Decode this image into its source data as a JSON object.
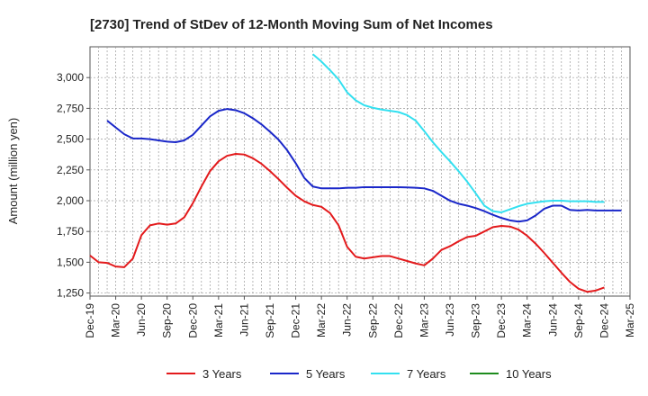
{
  "chart_data": {
    "type": "line",
    "title": "[2730]  Trend of StDev of 12-Month Moving Sum of Net Incomes",
    "ylabel": "Amount (million yen)",
    "xlabel": "",
    "ylim": [
      1225,
      3250
    ],
    "yticks": [
      1250,
      1500,
      1750,
      2000,
      2250,
      2500,
      2750,
      3000
    ],
    "ytick_labels": [
      "1,250",
      "1,500",
      "1,750",
      "2,000",
      "2,250",
      "2,500",
      "2,750",
      "3,000"
    ],
    "x_tick_labels": [
      "Dec-19",
      "Mar-20",
      "Jun-20",
      "Sep-20",
      "Dec-20",
      "Mar-21",
      "Jun-21",
      "Sep-21",
      "Dec-21",
      "Mar-22",
      "Jun-22",
      "Sep-22",
      "Dec-22",
      "Mar-23",
      "Jun-23",
      "Sep-23",
      "Dec-23",
      "Mar-24",
      "Jun-24",
      "Sep-24",
      "Dec-24",
      "Mar-25"
    ],
    "grid": true,
    "legend_position": "bottom",
    "series": [
      {
        "name": "3 Years",
        "color": "#e31a1c",
        "start_index": 0,
        "values": [
          1555,
          1500,
          1495,
          1465,
          1460,
          1530,
          1720,
          1800,
          1815,
          1805,
          1815,
          1865,
          1980,
          2115,
          2240,
          2320,
          2365,
          2380,
          2375,
          2345,
          2300,
          2240,
          2175,
          2105,
          2040,
          1995,
          1965,
          1950,
          1900,
          1800,
          1625,
          1545,
          1530,
          1540,
          1550,
          1550,
          1530,
          1510,
          1490,
          1475,
          1530,
          1600,
          1630,
          1670,
          1705,
          1715,
          1750,
          1785,
          1795,
          1790,
          1765,
          1715,
          1650,
          1575,
          1495,
          1415,
          1340,
          1285,
          1260,
          1270,
          1295
        ]
      },
      {
        "name": "5 Years",
        "color": "#1a27c9",
        "start_index": 2,
        "values": [
          2650,
          2595,
          2540,
          2505,
          2505,
          2500,
          2490,
          2480,
          2475,
          2490,
          2535,
          2610,
          2685,
          2730,
          2745,
          2735,
          2710,
          2670,
          2620,
          2560,
          2495,
          2410,
          2305,
          2185,
          2115,
          2100,
          2100,
          2100,
          2105,
          2105,
          2110,
          2110,
          2110,
          2110,
          2110,
          2108,
          2105,
          2100,
          2080,
          2040,
          2000,
          1975,
          1960,
          1940,
          1915,
          1885,
          1860,
          1840,
          1830,
          1840,
          1880,
          1935,
          1960,
          1960,
          1925,
          1920,
          1925,
          1920,
          1920,
          1920,
          1920
        ]
      },
      {
        "name": "7 Years",
        "color": "#33e0f0",
        "start_index": 26,
        "values": [
          3190,
          3130,
          3060,
          2985,
          2880,
          2815,
          2775,
          2755,
          2740,
          2730,
          2720,
          2695,
          2650,
          2565,
          2475,
          2395,
          2320,
          2240,
          2155,
          2060,
          1960,
          1915,
          1905,
          1930,
          1955,
          1975,
          1985,
          1995,
          2000,
          2000,
          1995,
          1995,
          1995,
          1990,
          1990
        ]
      },
      {
        "name": "10 Years",
        "color": "#1e8c1e",
        "start_index": 0,
        "values": []
      }
    ]
  }
}
